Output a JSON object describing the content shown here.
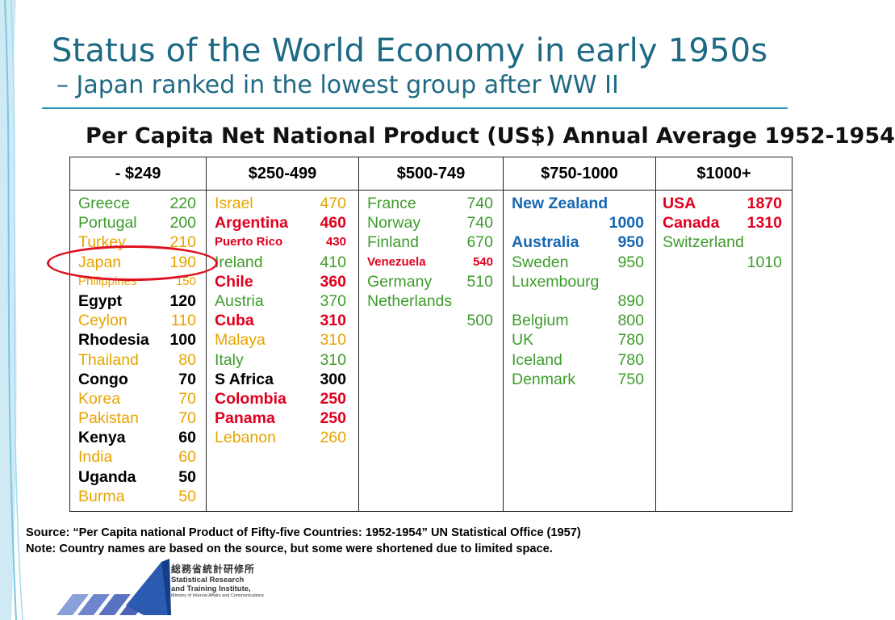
{
  "slide": {
    "title": "Status of the World Economy in early 1950s",
    "subtitle": "–  Japan ranked in the lowest group after WW II"
  },
  "table": {
    "heading": "Per Capita Net National Product (US$) Annual Average 1952-1954",
    "headers": [
      "- $249",
      "$250-499",
      "$500-749",
      "$750-1000",
      "$1000+"
    ],
    "col1": [
      {
        "name": "Greece",
        "value": "220",
        "color": "green"
      },
      {
        "name": "Portugal",
        "value": "200",
        "color": "green"
      },
      {
        "name": "Turkey",
        "value": "210",
        "color": "orange"
      },
      {
        "name": "Japan",
        "value": "190",
        "color": "orange"
      },
      {
        "name": "Philippines",
        "value": "150",
        "color": "orange"
      },
      {
        "name": "Egypt",
        "value": "120",
        "color": "black"
      },
      {
        "name": "Ceylon",
        "value": "110",
        "color": "orange"
      },
      {
        "name": "Rhodesia",
        "value": "100",
        "color": "black"
      },
      {
        "name": "Thailand",
        "value": "80",
        "color": "orange"
      },
      {
        "name": "Congo",
        "value": "70",
        "color": "black"
      },
      {
        "name": "Korea",
        "value": "70",
        "color": "orange"
      },
      {
        "name": "Pakistan",
        "value": "70",
        "color": "orange"
      },
      {
        "name": "Kenya",
        "value": "60",
        "color": "black"
      },
      {
        "name": "India",
        "value": "60",
        "color": "orange"
      },
      {
        "name": "Uganda",
        "value": "50",
        "color": "black"
      },
      {
        "name": "Burma",
        "value": "50",
        "color": "orange"
      }
    ],
    "col2": [
      {
        "name": "Israel",
        "value": "470",
        "color": "orange"
      },
      {
        "name": "Argentina",
        "value": "460",
        "color": "red"
      },
      {
        "name": "Puerto  Rico",
        "value": "430",
        "color": "red"
      },
      {
        "name": "Ireland",
        "value": "410",
        "color": "green"
      },
      {
        "name": "Chile",
        "value": "360",
        "color": "red"
      },
      {
        "name": "Austria",
        "value": "370",
        "color": "green"
      },
      {
        "name": "Cuba",
        "value": "310",
        "color": "red"
      },
      {
        "name": "Malaya",
        "value": "310",
        "color": "orange"
      },
      {
        "name": "Italy",
        "value": "310",
        "color": "green"
      },
      {
        "name": "S Africa",
        "value": "300",
        "color": "black"
      },
      {
        "name": "Colombia",
        "value": "250",
        "color": "red"
      },
      {
        "name": "Panama",
        "value": "250",
        "color": "red"
      },
      {
        "name": "Lebanon",
        "value": "260",
        "color": "orange"
      }
    ],
    "col3": [
      {
        "name": "France",
        "value": "740",
        "color": "green"
      },
      {
        "name": "Norway",
        "value": "740",
        "color": "green"
      },
      {
        "name": "Finland",
        "value": "670",
        "color": "green"
      },
      {
        "name": "Venezuela",
        "value": "540",
        "color": "red"
      },
      {
        "name": "Germany",
        "value": "510",
        "color": "green"
      },
      {
        "name": "Netherlands",
        "value": "500",
        "color": "green"
      }
    ],
    "col4": [
      {
        "name": "New Zealand",
        "value": "1000",
        "color": "blue"
      },
      {
        "name": "Australia",
        "value": "950",
        "color": "blue"
      },
      {
        "name": "Sweden",
        "value": "950",
        "color": "green"
      },
      {
        "name": "Luxembourg",
        "value": "890",
        "color": "green"
      },
      {
        "name": "Belgium",
        "value": "800",
        "color": "green"
      },
      {
        "name": "UK",
        "value": "780",
        "color": "green"
      },
      {
        "name": "Iceland",
        "value": "780",
        "color": "green"
      },
      {
        "name": "Denmark",
        "value": "750",
        "color": "green"
      }
    ],
    "col5": [
      {
        "name": "USA",
        "value": "1870",
        "color": "red"
      },
      {
        "name": "Canada",
        "value": "1310",
        "color": "red"
      },
      {
        "name": "Switzerland",
        "value": "1010",
        "color": "green"
      }
    ]
  },
  "footnote": {
    "source": "Source: “Per Capita national Product of Fifty-five Countries: 1952-1954” UN Statistical Office (1957)",
    "note": "Note: Country names are based on the source, but some were shortened due to limited space."
  },
  "logo": {
    "jp_name": "総務省統計研修所",
    "en_line1": "Statistical Research",
    "en_line2": "and Training Institute,",
    "en_line3": "Ministry of Internal Affairs and Communications"
  },
  "colors": {
    "title": "#1e6a84",
    "green": "#3e9c2c",
    "orange": "#e7a400",
    "red": "#e0001e",
    "blue": "#1767b3",
    "circle": "#e01020"
  }
}
